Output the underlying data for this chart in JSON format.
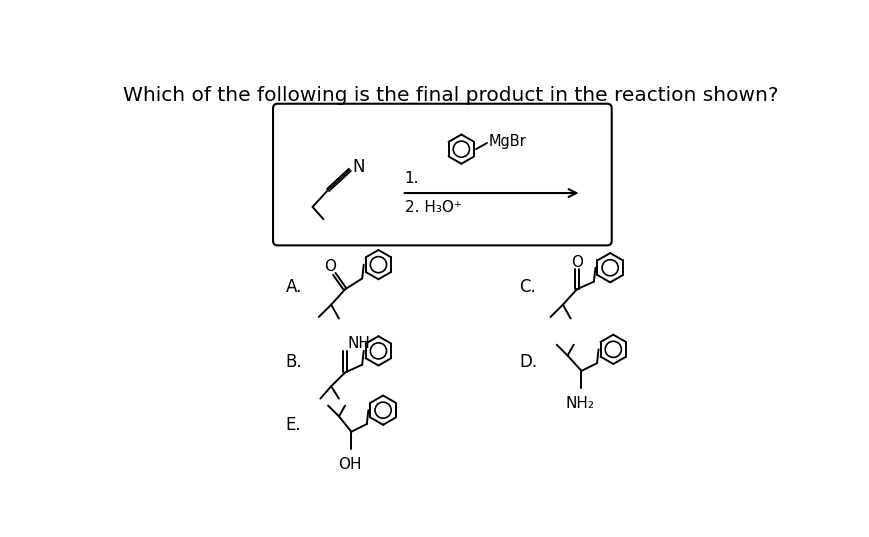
{
  "title": "Which of the following is the final product in the reaction shown?",
  "title_fontsize": 14.5,
  "background_color": "#ffffff",
  "text_color": "#000000",
  "step1_text": "1.",
  "step2_text": "2. H₃O⁺",
  "mgbr_text": "MgBr",
  "nh_text": "NH",
  "nh2_text": "NH₂",
  "oh_text": "OH",
  "o_text": "O",
  "n_text": "N"
}
